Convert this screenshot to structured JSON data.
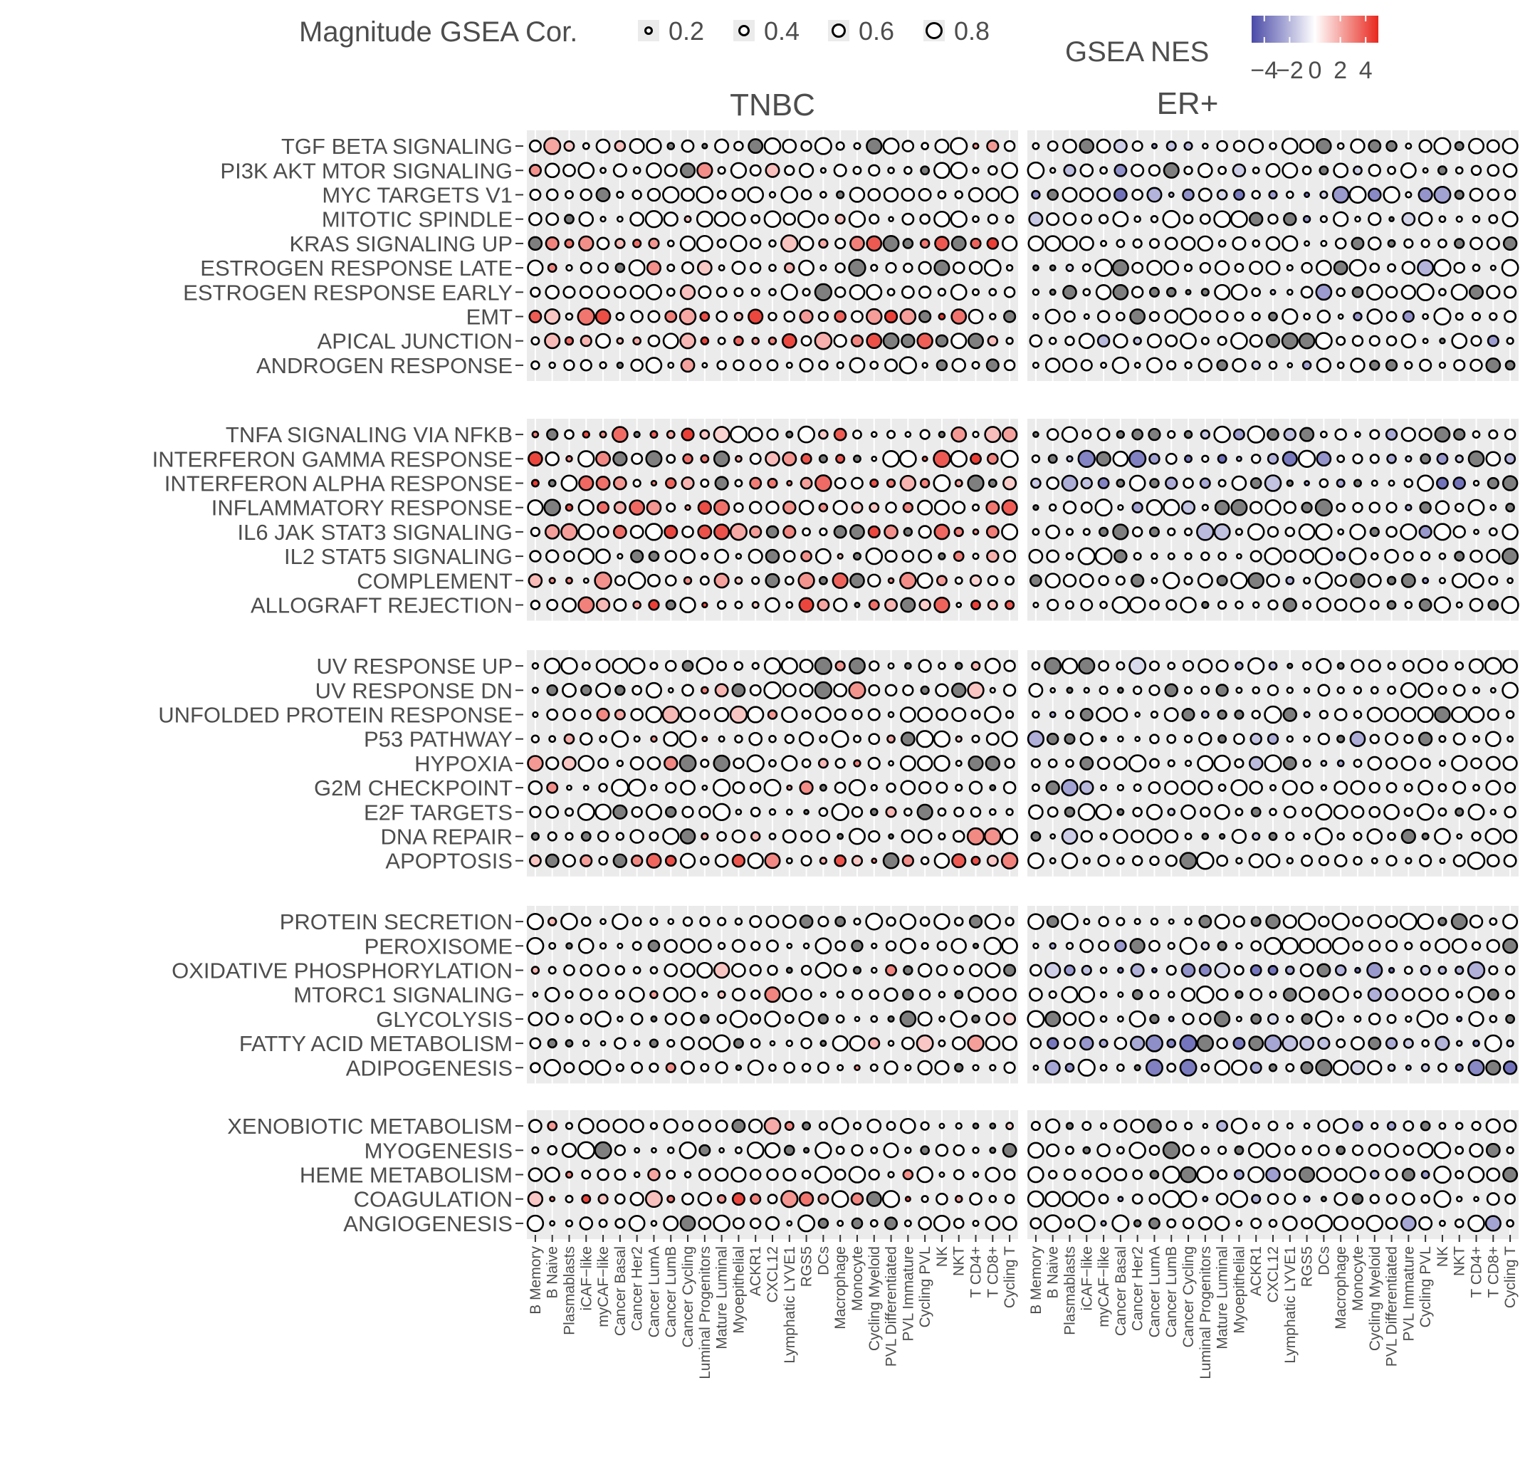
{
  "chart_data": {
    "type": "dot",
    "size_legend": {
      "title": "Magnitude GSEA Cor.",
      "values": [
        0.2,
        0.4,
        0.6,
        0.8
      ],
      "labels": [
        "0.2",
        "0.4",
        "0.6",
        "0.8"
      ]
    },
    "color_legend": {
      "title": "GSEA NES",
      "range": [
        -5,
        5
      ],
      "ticks": [
        -4,
        -2,
        0,
        2,
        4
      ],
      "tick_labels": [
        "−4",
        "−2",
        "0",
        "2",
        "4"
      ],
      "low_color": "#4a4aa8",
      "mid_color": "#ffffff",
      "high_color": "#e8281e",
      "nonsig_color": "#7f7f7f"
    },
    "panels": [
      "TNBC",
      "ER+"
    ],
    "cell_types": [
      "B Memory",
      "B Naive",
      "Plasmablasts",
      "iCAF−like",
      "myCAF−like",
      "Cancer Basal",
      "Cancer Her2",
      "Cancer LumA",
      "Cancer LumB",
      "Cancer Cycling",
      "Luminal Progenitors",
      "Mature Luminal",
      "Myoepithelial",
      "ACKR1",
      "CXCL12",
      "Lymphatic LYVE1",
      "RGS5",
      "DCs",
      "Macrophage",
      "Monocyte",
      "Cycling Myeloid",
      "PVL Differentiated",
      "PVL Immature",
      "Cycling PVL",
      "NK",
      "NKT",
      "T CD4+",
      "T CD8+",
      "Cycling T"
    ],
    "groups": [
      [
        "TGF BETA SIGNALING",
        "PI3K AKT MTOR SIGNALING",
        "MYC TARGETS V1",
        "MITOTIC SPINDLE",
        "KRAS SIGNALING UP",
        "ESTROGEN RESPONSE LATE",
        "ESTROGEN RESPONSE EARLY",
        "EMT",
        "APICAL JUNCTION",
        "ANDROGEN RESPONSE"
      ],
      [
        "TNFA SIGNALING VIA NFKB",
        "INTERFERON GAMMA RESPONSE",
        "INTERFERON ALPHA RESPONSE",
        "INFLAMMATORY RESPONSE",
        "IL6 JAK STAT3 SIGNALING",
        "IL2 STAT5 SIGNALING",
        "COMPLEMENT",
        "ALLOGRAFT REJECTION"
      ],
      [
        "UV RESPONSE UP",
        "UV RESPONSE DN",
        "UNFOLDED PROTEIN RESPONSE",
        "P53 PATHWAY",
        "HYPOXIA",
        "G2M CHECKPOINT",
        "E2F TARGETS",
        "DNA REPAIR",
        "APOPTOSIS"
      ],
      [
        "PROTEIN SECRETION",
        "PEROXISOME",
        "OXIDATIVE PHOSPHORYLATION",
        "MTORC1 SIGNALING",
        "GLYCOLYSIS",
        "FATTY ACID METABOLISM",
        "ADIPOGENESIS"
      ],
      [
        "XENOBIOTIC METABOLISM",
        "MYOGENESIS",
        "HEME METABOLISM",
        "COAGULATION",
        "ANGIOGENESIS"
      ]
    ],
    "grid": true
  }
}
